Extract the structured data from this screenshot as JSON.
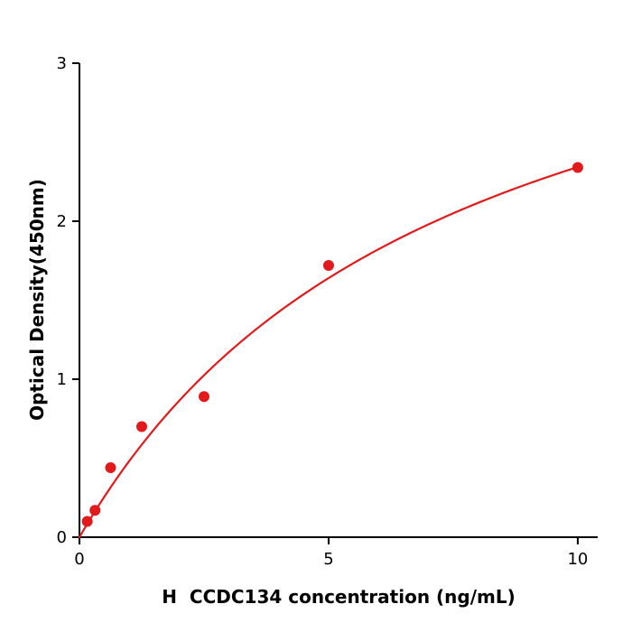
{
  "chart_data": {
    "type": "scatter",
    "title": "",
    "xlabel": "H  CCDC134 concentration (ng/mL)",
    "ylabel": "Optical Density(450nm)",
    "x": [
      0.156,
      0.3125,
      0.625,
      1.25,
      2.5,
      5,
      10
    ],
    "y": [
      0.1,
      0.17,
      0.44,
      0.7,
      0.89,
      1.72,
      2.34
    ],
    "xlim": [
      0,
      10.4
    ],
    "ylim": [
      0,
      3
    ],
    "xticks": [
      0,
      5,
      10
    ],
    "yticks": [
      0,
      1,
      2,
      3
    ],
    "grid": false,
    "legend": null,
    "point_color": "#e31a1c",
    "line_color": "#e31a1c",
    "axis_color": "#000000",
    "fit_curve": {
      "type": "michaelis_menten",
      "vmax": 4.1,
      "km": 7.5,
      "x_start": 0,
      "x_end": 10
    }
  }
}
